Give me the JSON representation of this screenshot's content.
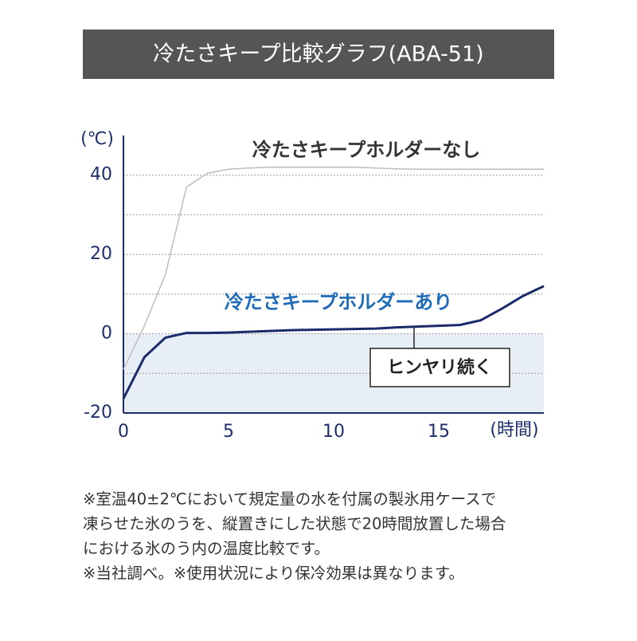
{
  "chart_data": {
    "type": "line",
    "title": "冷たさキープ比較グラフ(ABA-51)",
    "y_label": "(℃)",
    "x_label": "(時間)",
    "x": [
      0,
      1,
      2,
      3,
      4,
      5,
      6,
      7,
      8,
      9,
      10,
      11,
      12,
      13,
      14,
      15,
      16,
      17,
      18,
      19,
      20
    ],
    "series": [
      {
        "name": "冷たさキープホルダーなし",
        "color": "#bdbdbd",
        "label_color": "#333333",
        "values": [
          -9,
          2,
          15,
          37,
          40.5,
          41.5,
          41.8,
          42,
          42,
          42,
          42,
          42,
          41.8,
          41.6,
          41.5,
          41.5,
          41.5,
          41.5,
          41.5,
          41.5,
          41.5
        ]
      },
      {
        "name": "冷たさキープホルダーあり",
        "color": "#1b2a6b",
        "label_color": "#1e6bb8",
        "values": [
          -16.4,
          -5.9,
          -1,
          0.2,
          0.2,
          0.3,
          0.5,
          0.7,
          0.9,
          1,
          1.1,
          1.2,
          1.3,
          1.6,
          1.8,
          2,
          2.2,
          3.4,
          6.3,
          9.5,
          12
        ]
      }
    ],
    "annotation": "ヒンヤリ続く",
    "xlim": [
      0,
      20
    ],
    "ylim": [
      -20,
      50
    ],
    "xticks": [
      0,
      5,
      10,
      15
    ],
    "yticks": [
      -20,
      0,
      20,
      40
    ],
    "ygrid": [
      -10,
      0,
      10,
      20,
      30,
      40
    ],
    "footnote": [
      "※室温40±2℃において規定量の水を付属の製氷用ケースで",
      "凍らせた氷のうを、縦置きにした状態で20時間放置した場合",
      "における氷のう内の温度比較です。",
      "※当社調べ。※使用状況により保冷効果は異なります。"
    ]
  }
}
